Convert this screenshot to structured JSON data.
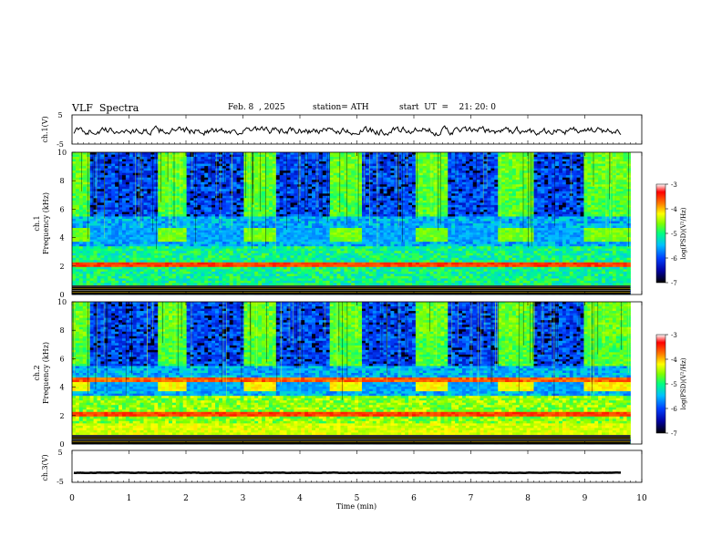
{
  "header": {
    "title": "VLF  Spectra",
    "date": "Feb. 8  , 2025",
    "station": "station= ATH",
    "start_ut": "start  UT  =    21: 20: 0"
  },
  "chart_data": [
    {
      "type": "line",
      "name": "ch1-waveform",
      "ylabel": "ch.1(V)",
      "ylim": [
        -5,
        5
      ],
      "yticks": [
        "5",
        "-5"
      ],
      "xlim": [
        0,
        10
      ],
      "baseline": -0.5,
      "noise_amplitude": 1.2
    },
    {
      "type": "heatmap",
      "name": "ch1-spectrogram",
      "ylabel": "ch.1\nFrequency  (kHz)",
      "ylim": [
        0,
        10
      ],
      "yticks": [
        "0",
        "2",
        "4",
        "6",
        "8",
        "10"
      ],
      "xlim": [
        0,
        9.8
      ],
      "transmitter_bursts_min": [
        [
          0.3,
          1.5
        ],
        [
          2.0,
          3.0
        ],
        [
          3.6,
          4.5
        ],
        [
          5.1,
          6.0
        ],
        [
          6.6,
          7.5
        ],
        [
          8.1,
          9.0
        ]
      ],
      "colorbar": {
        "label": "log(PSD)(V²/Hz)",
        "range": [
          -7,
          -3
        ],
        "ticks": [
          "-3",
          "-4",
          "-5",
          "-6",
          "-7"
        ],
        "colors": [
          "#000000",
          "#0000a0",
          "#0040ff",
          "#00c0ff",
          "#00ff80",
          "#80ff00",
          "#ffff00",
          "#ff8000",
          "#ff0000",
          "#ffffff"
        ]
      }
    },
    {
      "type": "heatmap",
      "name": "ch2-spectrogram",
      "ylabel": "ch.2\nFrequency  (kHz)",
      "ylim": [
        0,
        10
      ],
      "yticks": [
        "0",
        "2",
        "4",
        "6",
        "8",
        "10"
      ],
      "xlim": [
        0,
        9.8
      ],
      "transmitter_bursts_min": [
        [
          0.3,
          1.5
        ],
        [
          2.0,
          3.0
        ],
        [
          3.6,
          4.5
        ],
        [
          5.1,
          6.0
        ],
        [
          6.6,
          7.5
        ],
        [
          8.1,
          9.0
        ]
      ],
      "colorbar": {
        "label": "log(PSD)(V²/Hz)",
        "range": [
          -7,
          -3
        ],
        "ticks": [
          "-3",
          "-4",
          "-5",
          "-6",
          "-7"
        ]
      }
    },
    {
      "type": "line",
      "name": "ch3-waveform",
      "ylabel": "ch.3(V)",
      "ylim": [
        -5,
        5
      ],
      "yticks": [
        "5",
        "-5"
      ],
      "xlim": [
        0,
        10
      ],
      "baseline": -2,
      "noise_amplitude": 0.25
    }
  ],
  "x_axis": {
    "label": "Time  (min)",
    "range": [
      0,
      10
    ],
    "ticks": [
      "0",
      "1",
      "2",
      "3",
      "4",
      "5",
      "6",
      "7",
      "8",
      "9",
      "10"
    ]
  }
}
